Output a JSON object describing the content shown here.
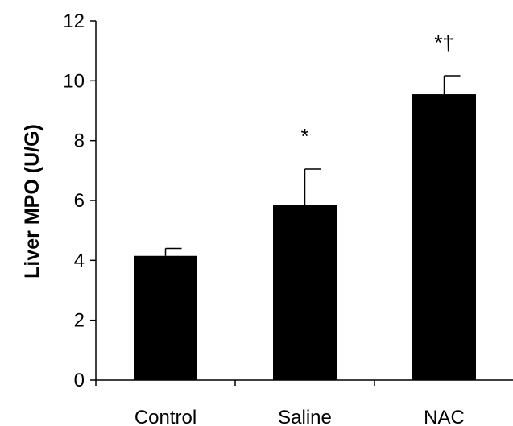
{
  "chart_data": {
    "type": "bar",
    "title": "",
    "xlabel": "",
    "ylabel": "Liver MPO (U/G)",
    "ylim": [
      0,
      12
    ],
    "yticks": [
      0,
      2,
      4,
      6,
      8,
      10,
      12
    ],
    "grid": false,
    "legend": "none",
    "categories": [
      "Control",
      "Saline",
      "NAC"
    ],
    "values": [
      4.15,
      5.85,
      9.55
    ],
    "errors": [
      0.25,
      1.2,
      0.62
    ],
    "annotations": [
      "",
      "*",
      "*†"
    ],
    "colors": {
      "bar": "#000000",
      "axis": "#000000",
      "text": "#000000"
    }
  }
}
